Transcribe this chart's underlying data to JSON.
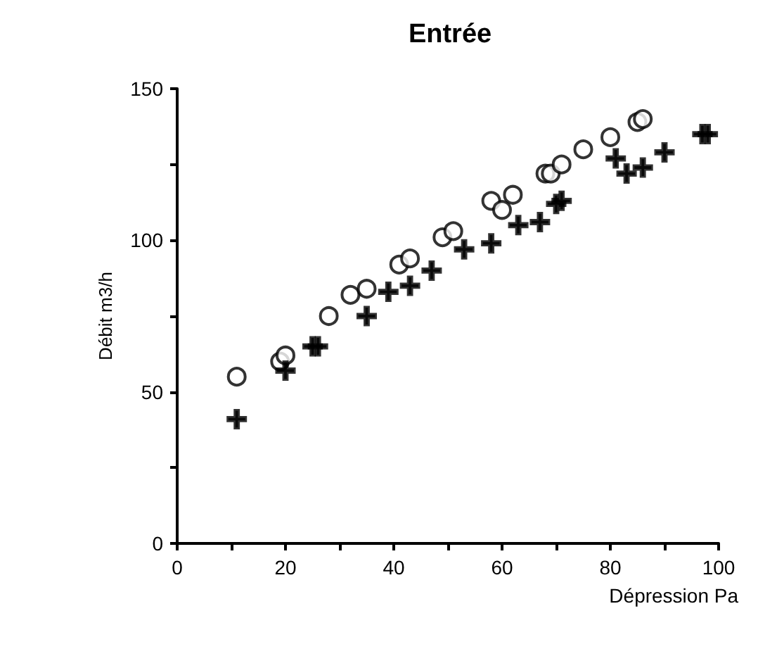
{
  "chart_data": {
    "type": "scatter",
    "title": "Entrée",
    "xlabel": "Dépression Pa",
    "ylabel": "Débit m3/h",
    "xlim": [
      0,
      100
    ],
    "ylim": [
      0,
      150
    ],
    "xticks": [
      0,
      {
        "value": 10,
        "label": null
      },
      20,
      {
        "value": 30,
        "label": null
      },
      40,
      {
        "value": 50,
        "label": null
      },
      60,
      {
        "value": 70,
        "label": null
      },
      80,
      {
        "value": 90,
        "label": null
      },
      100
    ],
    "yticks": [
      0,
      {
        "value": 25,
        "label": null
      },
      50,
      {
        "value": 75,
        "label": null
      },
      100,
      {
        "value": 125,
        "label": null
      },
      150
    ],
    "grid": false,
    "series": [
      {
        "color": "#000000",
        "marker": "circle",
        "x": [
          11,
          19,
          20,
          28,
          32,
          35,
          41,
          43,
          49,
          51,
          58,
          60,
          62,
          68,
          69,
          71,
          75,
          80,
          85,
          86
        ],
        "values": [
          55,
          60,
          62,
          75,
          82,
          84,
          92,
          94,
          101,
          103,
          113,
          110,
          115,
          122,
          122,
          125,
          130,
          134,
          139,
          140
        ]
      },
      {
        "color": "#000000",
        "marker": "cross",
        "x": [
          11,
          20,
          25,
          26,
          35,
          39,
          43,
          47,
          53,
          58,
          63,
          67,
          70,
          71,
          81,
          83,
          86,
          90,
          97,
          98
        ],
        "values": [
          41,
          57,
          65,
          65,
          75,
          83,
          85,
          90,
          97,
          99,
          105,
          106,
          112,
          113,
          127,
          122,
          124,
          129,
          135,
          135
        ]
      }
    ]
  }
}
